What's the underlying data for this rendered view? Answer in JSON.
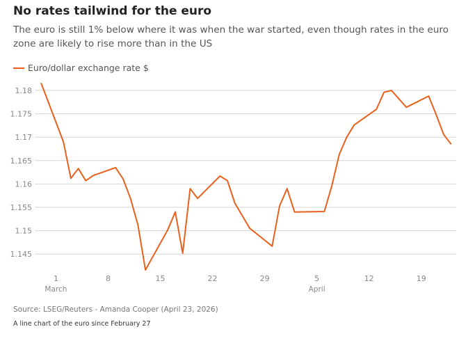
{
  "title": "No rates tailwind for the euro",
  "subtitle": "The euro is still 1% below where it was when the war started, even though rates in the euro zone are likely to rise more than in the US",
  "source": "Source: LSEG/Reuters - Amanda Cooper (April 23, 2026)",
  "note": "A line chart of the euro since February 27",
  "chart_data": {
    "type": "line",
    "title": "No rates tailwind for the euro",
    "xlabel": "",
    "ylabel": "",
    "ylim": [
      1.14,
      1.182
    ],
    "yticks": [
      1.145,
      1.15,
      1.155,
      1.16,
      1.165,
      1.17,
      1.175,
      1.18
    ],
    "ytick_labels": [
      "1.145",
      "1.15",
      "1.155",
      "1.16",
      "1.165",
      "1.17",
      "1.175",
      "1.18"
    ],
    "xticks": [
      {
        "day": 0,
        "label": "1",
        "sub": "March"
      },
      {
        "day": 7,
        "label": "8",
        "sub": ""
      },
      {
        "day": 14,
        "label": "15",
        "sub": ""
      },
      {
        "day": 21,
        "label": "22",
        "sub": ""
      },
      {
        "day": 28,
        "label": "29",
        "sub": ""
      },
      {
        "day": 35,
        "label": "5",
        "sub": "April"
      },
      {
        "day": 42,
        "label": "12",
        "sub": ""
      },
      {
        "day": 49,
        "label": "19",
        "sub": ""
      }
    ],
    "x_unit": "days since March 1",
    "grid": true,
    "legend_position": "top-left",
    "series": [
      {
        "name": "Euro/dollar exchange rate $",
        "color": "#e8601c",
        "x": [
          -2,
          1,
          2,
          3,
          4,
          5,
          8,
          9,
          10,
          11,
          12,
          15,
          16,
          17,
          18,
          19,
          22,
          23,
          24,
          25,
          26,
          29,
          30,
          31,
          32,
          36,
          37,
          38,
          39,
          40,
          43,
          44,
          45,
          46,
          47,
          50,
          51,
          52,
          53
        ],
        "y": [
          1.1816,
          1.169,
          1.1612,
          1.1633,
          1.1607,
          1.1618,
          1.1635,
          1.1611,
          1.1569,
          1.1512,
          1.1416,
          1.1502,
          1.154,
          1.1452,
          1.159,
          1.1569,
          1.1617,
          1.1607,
          1.1559,
          1.1532,
          1.1505,
          1.1467,
          1.1553,
          1.159,
          1.154,
          1.1541,
          1.1596,
          1.1663,
          1.17,
          1.1726,
          1.176,
          1.1796,
          1.18,
          1.1782,
          1.1764,
          1.1788,
          1.1748,
          1.1706,
          1.1685
        ]
      }
    ]
  }
}
